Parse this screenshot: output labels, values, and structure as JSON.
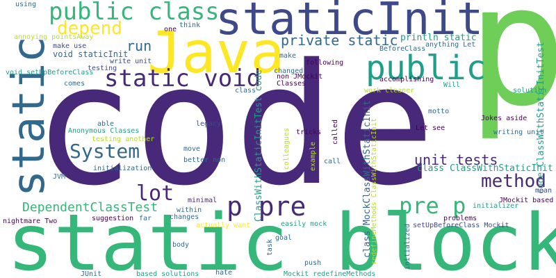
{
  "colors": {
    "purple": "#440154",
    "indigo": "#482878",
    "blue": "#3e4989",
    "steel": "#31688e",
    "teal": "#26828e",
    "sea": "#1f9e89",
    "green": "#35b779",
    "bright_green": "#6ece58",
    "lime": "#b5de2b",
    "yellow": "#fde725"
  },
  "words": [
    {
      "text": "code",
      "color": "indigo"
    },
    {
      "text": "p",
      "color": "bright_green"
    },
    {
      "text": "static block",
      "color": "green"
    },
    {
      "text": "static",
      "color": "steel"
    },
    {
      "text": "staticInit",
      "color": "blue"
    },
    {
      "text": "Java",
      "color": "yellow"
    },
    {
      "text": "public class",
      "color": "green"
    },
    {
      "text": "public",
      "color": "sea"
    },
    {
      "text": "static void",
      "color": "indigo"
    },
    {
      "text": "depend",
      "color": "yellow"
    },
    {
      "text": "private static",
      "color": "steel"
    },
    {
      "text": "run",
      "color": "steel"
    },
    {
      "text": "System",
      "color": "steel"
    },
    {
      "text": "lot",
      "color": "indigo"
    },
    {
      "text": "p pre",
      "color": "indigo"
    },
    {
      "text": "pre p",
      "color": "green"
    },
    {
      "text": "method",
      "color": "indigo"
    },
    {
      "text": "unit tests",
      "color": "indigo"
    },
    {
      "text": "DependentClassTest",
      "color": "green"
    },
    {
      "text": "println static",
      "color": "sea"
    },
    {
      "text": "class ClassWithStaticInit",
      "color": "sea"
    },
    {
      "text": "code ClassWithStaticInitTest",
      "color": "sea"
    },
    {
      "text": "class MockClassWithStaticInit",
      "color": "steel"
    },
    {
      "text": "ClassWithStaticInitTest code",
      "color": "sea"
    },
    {
      "text": "redefineMethods ClassWithStaticInit",
      "color": "lime"
    },
    {
      "text": "void staticInit",
      "color": "steel"
    },
    {
      "text": "void setUpBeforeClass",
      "color": "sea"
    },
    {
      "text": "annoying pointsAway",
      "color": "lime"
    },
    {
      "text": "using",
      "color": "steel"
    },
    {
      "text": "one",
      "color": "purple"
    },
    {
      "text": "think",
      "color": "steel"
    },
    {
      "text": "make use",
      "color": "blue"
    },
    {
      "text": "write unit",
      "color": "blue"
    },
    {
      "text": "testing",
      "color": "blue"
    },
    {
      "text": "comes",
      "color": "steel"
    },
    {
      "text": "class",
      "color": "steel"
    },
    {
      "text": "non JMockit",
      "color": "purple"
    },
    {
      "text": "Classes",
      "color": "purple"
    },
    {
      "text": "changed",
      "color": "steel"
    },
    {
      "text": "make",
      "color": "steel"
    },
    {
      "text": "following",
      "color": "purple"
    },
    {
      "text": "accomplishing",
      "color": "purple"
    },
    {
      "text": "anything Let",
      "color": "steel"
    },
    {
      "text": "BeforeClass",
      "color": "steel"
    },
    {
      "text": "Will",
      "color": "sea"
    },
    {
      "text": "work cleaner",
      "color": "lime"
    },
    {
      "text": "solution",
      "color": "sea"
    },
    {
      "text": "motto",
      "color": "steel"
    },
    {
      "text": "Let see",
      "color": "purple"
    },
    {
      "text": "Jokes aside",
      "color": "purple"
    },
    {
      "text": "writing unit",
      "color": "steel"
    },
    {
      "text": "able",
      "color": "steel"
    },
    {
      "text": "Anonymous Classes",
      "color": "sea"
    },
    {
      "text": "testing another",
      "color": "lime"
    },
    {
      "text": "legacy",
      "color": "blue"
    },
    {
      "text": "tricks",
      "color": "purple"
    },
    {
      "text": "called",
      "color": "purple"
    },
    {
      "text": "colleagues",
      "color": "lime"
    },
    {
      "text": "example",
      "color": "lime"
    },
    {
      "text": "call",
      "color": "steel"
    },
    {
      "text": "move",
      "color": "steel"
    },
    {
      "text": "better non",
      "color": "steel"
    },
    {
      "text": "initialization",
      "color": "steel"
    },
    {
      "text": "JVM",
      "color": "steel"
    },
    {
      "text": "mean",
      "color": "blue"
    },
    {
      "text": "JMockit based",
      "color": "purple"
    },
    {
      "text": "initializer",
      "color": "sea"
    },
    {
      "text": "minimal",
      "color": "indigo"
    },
    {
      "text": "within",
      "color": "steel"
    },
    {
      "text": "far",
      "color": "steel"
    },
    {
      "text": "changes",
      "color": "steel"
    },
    {
      "text": "suggestion",
      "color": "purple"
    },
    {
      "text": "nightmare Two",
      "color": "purple"
    },
    {
      "text": "actually want",
      "color": "yellow"
    },
    {
      "text": "easily mock",
      "color": "sea"
    },
    {
      "text": "problems",
      "color": "purple"
    },
    {
      "text": "setUpBeforeClass Mockit",
      "color": "blue"
    },
    {
      "text": "initialized",
      "color": "steel"
    },
    {
      "text": "body",
      "color": "steel"
    },
    {
      "text": "goal",
      "color": "steel"
    },
    {
      "text": "task",
      "color": "steel"
    },
    {
      "text": "push",
      "color": "steel"
    },
    {
      "text": "JUnit",
      "color": "steel"
    },
    {
      "text": "based solutions",
      "color": "sea"
    },
    {
      "text": "hate",
      "color": "steel"
    },
    {
      "text": "Mockit redefineMethods",
      "color": "sea"
    }
  ]
}
